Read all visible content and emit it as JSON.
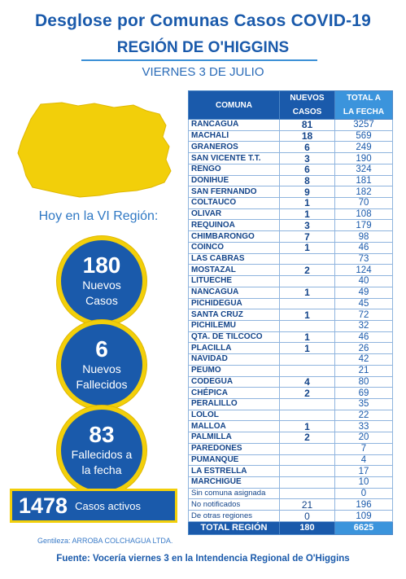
{
  "header": {
    "title": "Desglose por Comunas Casos COVID-19",
    "region": "REGIÓN DE O'HIGGINS",
    "date": "VIERNES 3 DE JULIO"
  },
  "colors": {
    "blue": "#1a5aab",
    "light_blue": "#3b94dc",
    "yellow": "#f2cf0a"
  },
  "summary": {
    "heading": "Hoy en la VI Región:",
    "new_cases": {
      "value": "180",
      "label": "Nuevos\nCasos"
    },
    "new_deaths": {
      "value": "6",
      "label": "Nuevos\nFallecidos"
    },
    "total_deaths": {
      "value": "83",
      "label": "Fallecidos a\nla fecha"
    },
    "active": {
      "value": "1478",
      "label": "Casos activos"
    }
  },
  "table": {
    "headers": {
      "comuna": "COMUNA",
      "nuevos_l1": "NUEVOS",
      "nuevos_l2": "CASOS",
      "total_l1": "TOTAL A",
      "total_l2": "LA FECHA"
    },
    "rows": [
      {
        "comuna": "RANCAGUA",
        "nuevos": "81",
        "total": "3257"
      },
      {
        "comuna": "MACHALÍ",
        "nuevos": "18",
        "total": "569"
      },
      {
        "comuna": "GRANEROS",
        "nuevos": "6",
        "total": "249"
      },
      {
        "comuna": "SAN VICENTE T.T.",
        "nuevos": "3",
        "total": "190"
      },
      {
        "comuna": "RENGO",
        "nuevos": "6",
        "total": "324"
      },
      {
        "comuna": "DOÑIHUE",
        "nuevos": "8",
        "total": "181"
      },
      {
        "comuna": "SAN FERNANDO",
        "nuevos": "9",
        "total": "182"
      },
      {
        "comuna": "COLTAUCO",
        "nuevos": "1",
        "total": "70"
      },
      {
        "comuna": "OLIVAR",
        "nuevos": "1",
        "total": "108"
      },
      {
        "comuna": "REQUINOA",
        "nuevos": "3",
        "total": "179"
      },
      {
        "comuna": "CHIMBARONGO",
        "nuevos": "7",
        "total": "98"
      },
      {
        "comuna": "COINCO",
        "nuevos": "1",
        "total": "46"
      },
      {
        "comuna": "LAS CABRAS",
        "nuevos": "",
        "total": "73"
      },
      {
        "comuna": "MOSTAZAL",
        "nuevos": "2",
        "total": "124"
      },
      {
        "comuna": "LITUECHE",
        "nuevos": "",
        "total": "40"
      },
      {
        "comuna": "NANCAGUA",
        "nuevos": "1",
        "total": "49"
      },
      {
        "comuna": "PICHIDEGUA",
        "nuevos": "",
        "total": "45"
      },
      {
        "comuna": "SANTA CRUZ",
        "nuevos": "1",
        "total": "72"
      },
      {
        "comuna": "PICHILEMU",
        "nuevos": "",
        "total": "32"
      },
      {
        "comuna": "QTA. DE TILCOCO",
        "nuevos": "1",
        "total": "46"
      },
      {
        "comuna": "PLACILLA",
        "nuevos": "1",
        "total": "26"
      },
      {
        "comuna": "NAVIDAD",
        "nuevos": "",
        "total": "42"
      },
      {
        "comuna": "PEUMO",
        "nuevos": "",
        "total": "21"
      },
      {
        "comuna": "CODEGUA",
        "nuevos": "4",
        "total": "80"
      },
      {
        "comuna": "CHÉPICA",
        "nuevos": "2",
        "total": "69"
      },
      {
        "comuna": "PERALILLO",
        "nuevos": "",
        "total": "35"
      },
      {
        "comuna": "LOLOL",
        "nuevos": "",
        "total": "22"
      },
      {
        "comuna": "MALLOA",
        "nuevos": "1",
        "total": "33"
      },
      {
        "comuna": "PALMILLA",
        "nuevos": "2",
        "total": "20"
      },
      {
        "comuna": "PAREDONES",
        "nuevos": "",
        "total": "7"
      },
      {
        "comuna": "PUMANQUE",
        "nuevos": "",
        "total": "4"
      },
      {
        "comuna": "LA ESTRELLA",
        "nuevos": "",
        "total": "17"
      },
      {
        "comuna": "MARCHIGÜE",
        "nuevos": "",
        "total": "10"
      },
      {
        "comuna": "Sin comuna asignada",
        "nuevos": "",
        "total": "0",
        "plain": true
      },
      {
        "comuna": "No notificados",
        "nuevos": "21",
        "total": "196",
        "plain": true
      },
      {
        "comuna": "De otras regiones",
        "nuevos": "0",
        "total": "109",
        "plain": true
      }
    ],
    "footer": {
      "label": "TOTAL REGIÓN",
      "nuevos": "180",
      "total": "6625"
    }
  },
  "credits": {
    "gentileza": "Gentileza:  ARROBA COLCHAGUA LTDA.",
    "fuente": "Fuente:  Vocería viernes 3 en la Intendencia Regional de O'Higgins"
  }
}
